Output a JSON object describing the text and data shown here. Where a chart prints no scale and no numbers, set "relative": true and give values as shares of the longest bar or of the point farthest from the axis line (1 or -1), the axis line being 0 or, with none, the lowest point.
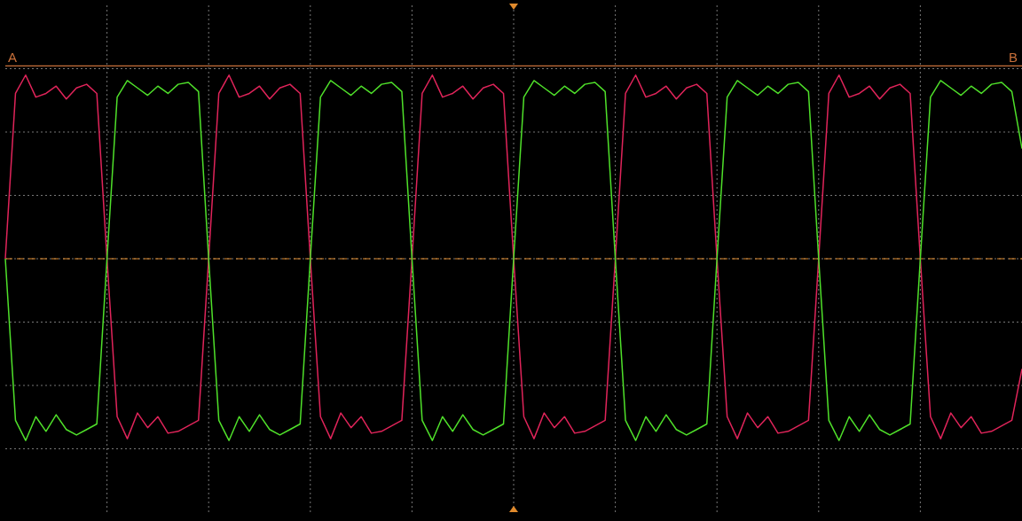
{
  "chart_data": {
    "type": "line",
    "relative": true,
    "grid": true,
    "categories": [
      null,
      null,
      null,
      null,
      null,
      null,
      null,
      null,
      null,
      null,
      null,
      null,
      null,
      null,
      null,
      null,
      null,
      null,
      null,
      null,
      null,
      null,
      null,
      null,
      null,
      null,
      null,
      null,
      null,
      null,
      null,
      null,
      null,
      null,
      null,
      null,
      null,
      null,
      null,
      null,
      null,
      null,
      null,
      null,
      null,
      null,
      null,
      null,
      null,
      null,
      null,
      null,
      null,
      null,
      null,
      null,
      null,
      null,
      null,
      null,
      null,
      null,
      null,
      null,
      null,
      null,
      null,
      null,
      null,
      null,
      null,
      null,
      null,
      null,
      null,
      null,
      null,
      null,
      null,
      null,
      null,
      null,
      null,
      null,
      null,
      null,
      null,
      null,
      null,
      null,
      null,
      null,
      null,
      null,
      null,
      null,
      null,
      null,
      null,
      null,
      null
    ],
    "series": [
      {
        "color": "#e0245a",
        "values": [
          0,
          0.9,
          1.0,
          0.88,
          0.9,
          0.94,
          0.87,
          0.93,
          0.95,
          0.9,
          0,
          -0.86,
          -0.98,
          -0.84,
          -0.92,
          -0.86,
          -0.95,
          -0.94,
          -0.91,
          -0.88,
          0,
          0.9,
          1.0,
          0.88,
          0.9,
          0.94,
          0.87,
          0.93,
          0.95,
          0.9,
          0,
          -0.86,
          -0.98,
          -0.84,
          -0.92,
          -0.86,
          -0.95,
          -0.94,
          -0.91,
          -0.88,
          0,
          0.9,
          1.0,
          0.88,
          0.9,
          0.94,
          0.87,
          0.93,
          0.95,
          0.9,
          0,
          -0.86,
          -0.98,
          -0.84,
          -0.92,
          -0.86,
          -0.95,
          -0.94,
          -0.91,
          -0.88,
          0,
          0.9,
          1.0,
          0.88,
          0.9,
          0.94,
          0.87,
          0.93,
          0.95,
          0.9,
          0,
          -0.86,
          -0.98,
          -0.84,
          -0.92,
          -0.86,
          -0.95,
          -0.94,
          -0.91,
          -0.88,
          0,
          0.9,
          1.0,
          0.88,
          0.9,
          0.94,
          0.87,
          0.93,
          0.95,
          0.9,
          0,
          -0.86,
          -0.98,
          -0.84,
          -0.92,
          -0.86,
          -0.95,
          -0.94,
          -0.91,
          -0.88,
          -0.6
        ]
      },
      {
        "color": "#4fe02a",
        "values": [
          0,
          -0.88,
          -0.99,
          -0.86,
          -0.94,
          -0.85,
          -0.93,
          -0.96,
          -0.93,
          -0.9,
          0,
          0.88,
          0.97,
          0.93,
          0.89,
          0.94,
          0.9,
          0.95,
          0.96,
          0.91,
          0,
          -0.88,
          -0.99,
          -0.86,
          -0.94,
          -0.85,
          -0.93,
          -0.96,
          -0.93,
          -0.9,
          0,
          0.88,
          0.97,
          0.93,
          0.89,
          0.94,
          0.9,
          0.95,
          0.96,
          0.91,
          0,
          -0.88,
          -0.99,
          -0.86,
          -0.94,
          -0.85,
          -0.93,
          -0.96,
          -0.93,
          -0.9,
          0,
          0.88,
          0.97,
          0.93,
          0.89,
          0.94,
          0.9,
          0.95,
          0.96,
          0.91,
          0,
          -0.88,
          -0.99,
          -0.86,
          -0.94,
          -0.85,
          -0.93,
          -0.96,
          -0.93,
          -0.9,
          0,
          0.88,
          0.97,
          0.93,
          0.89,
          0.94,
          0.9,
          0.95,
          0.96,
          0.91,
          0,
          -0.88,
          -0.99,
          -0.86,
          -0.94,
          -0.85,
          -0.93,
          -0.96,
          -0.93,
          -0.9,
          0,
          0.88,
          0.97,
          0.93,
          0.89,
          0.94,
          0.9,
          0.95,
          0.96,
          0.91,
          0.6
        ]
      }
    ],
    "ref_lines": [
      {
        "axis": "y",
        "value": 0,
        "color": "#e08a2c",
        "line_style": "dashed"
      },
      {
        "axis": "y",
        "value": 1.05,
        "label": "A",
        "color": "#c8703a",
        "line_style": "solid"
      }
    ],
    "annotations": [
      {
        "text": "B",
        "y": 1.05
      }
    ]
  }
}
